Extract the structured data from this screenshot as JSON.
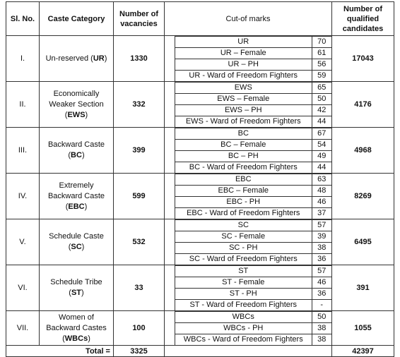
{
  "table": {
    "header": {
      "sl": "Sl. No.",
      "category": "Caste Category",
      "vacancies": "Number of vacancies",
      "cutoff": "Cut-of marks",
      "qualified": "Number of qualified candidates"
    },
    "rows": [
      {
        "sl": "I.",
        "category": [
          "Un-reserved (",
          "UR",
          ")"
        ],
        "vacancies": "1330",
        "cutoffs": [
          [
            "UR",
            "70"
          ],
          [
            "UR – Female",
            "61"
          ],
          [
            "UR – PH",
            "56"
          ],
          [
            "UR - Ward of Freedom Fighters",
            "59"
          ]
        ],
        "qualified": "17043"
      },
      {
        "sl": "II.",
        "category": [
          "Economically Weaker Section (",
          "EWS",
          ")"
        ],
        "vacancies": "332",
        "cutoffs": [
          [
            "EWS",
            "65"
          ],
          [
            "EWS – Female",
            "50"
          ],
          [
            "EWS – PH",
            "42"
          ],
          [
            "EWS - Ward of Freedom Fighters",
            "44"
          ]
        ],
        "qualified": "4176"
      },
      {
        "sl": "III.",
        "category": [
          "Backward Caste (",
          "BC",
          ")"
        ],
        "vacancies": "399",
        "cutoffs": [
          [
            "BC",
            "67"
          ],
          [
            "BC – Female",
            "54"
          ],
          [
            "BC – PH",
            "49"
          ],
          [
            "BC - Ward of Freedom Fighters",
            "44"
          ]
        ],
        "qualified": "4968"
      },
      {
        "sl": "IV.",
        "category": [
          "Extremely Backward Caste (",
          "EBC",
          ")"
        ],
        "vacancies": "599",
        "cutoffs": [
          [
            "EBC",
            "63"
          ],
          [
            "EBC – Female",
            "48"
          ],
          [
            "EBC - PH",
            "46"
          ],
          [
            "EBC - Ward of Freedom Fighters",
            "37"
          ]
        ],
        "qualified": "8269"
      },
      {
        "sl": "V.",
        "category": [
          "Schedule Caste (",
          "SC",
          ")"
        ],
        "vacancies": "532",
        "cutoffs": [
          [
            "SC",
            "57"
          ],
          [
            "SC - Female",
            "39"
          ],
          [
            "SC - PH",
            "38"
          ],
          [
            "SC - Ward of Freedom Fighters",
            "36"
          ]
        ],
        "qualified": "6495"
      },
      {
        "sl": "VI.",
        "category": [
          "Schedule Tribe (",
          "ST",
          ")"
        ],
        "vacancies": "33",
        "cutoffs": [
          [
            "ST",
            "57"
          ],
          [
            "ST - Female",
            "46"
          ],
          [
            "ST - PH",
            "36"
          ],
          [
            "ST - Ward of Freedom Fighters",
            "-"
          ]
        ],
        "qualified": "391"
      },
      {
        "sl": "VII.",
        "category": [
          "Women of Backward Castes (",
          "WBCs",
          ")"
        ],
        "vacancies": "100",
        "cutoffs": [
          [
            "WBCs",
            "50"
          ],
          [
            "WBCs - PH",
            "38"
          ],
          [
            "WBCs - Ward of Freedom Fighters",
            "38"
          ]
        ],
        "qualified": "1055"
      }
    ],
    "total": {
      "label": "Total =",
      "vacancies": "3325",
      "qualified": "42397"
    }
  }
}
